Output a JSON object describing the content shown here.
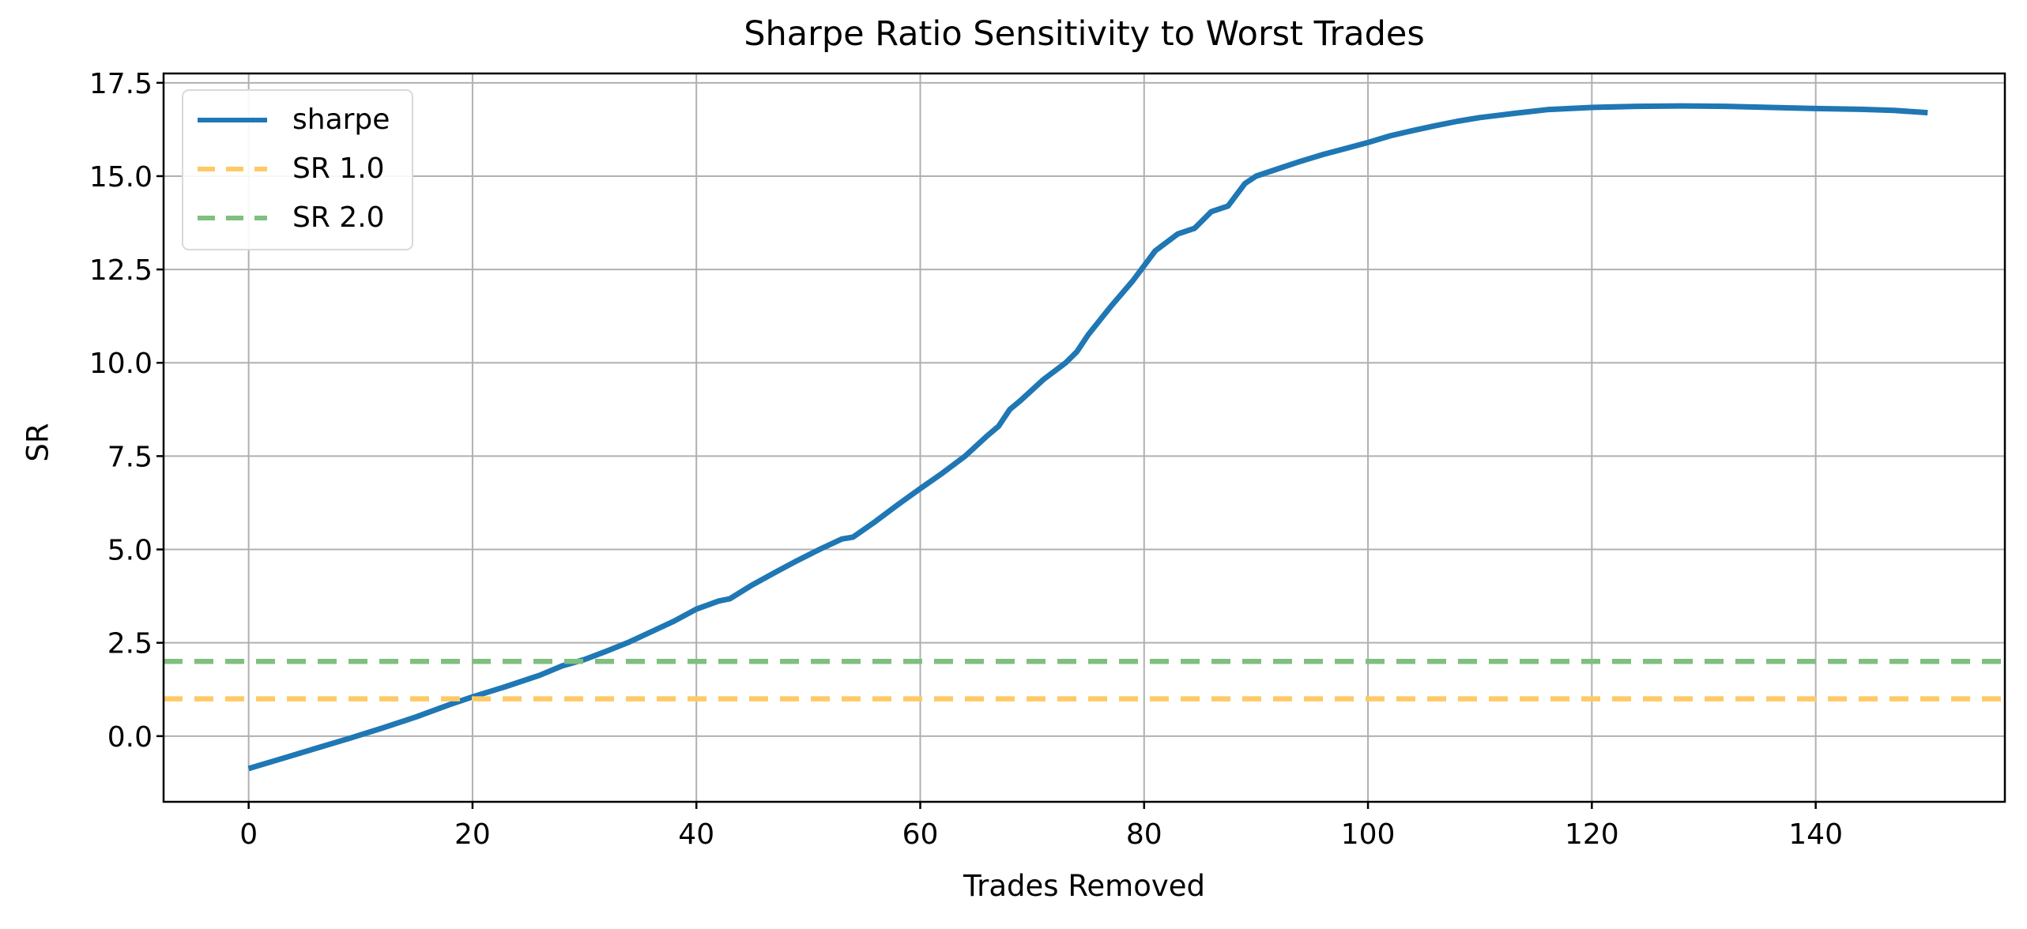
{
  "title": "Sharpe Ratio Sensitivity to Worst Trades",
  "axes": {
    "xlabel": "Trades Removed",
    "ylabel": "SR"
  },
  "legend": {
    "items": [
      {
        "label": "sharpe",
        "color": "#1f77b4",
        "style": "solid"
      },
      {
        "label": "SR 1.0",
        "color": "#ffc966",
        "style": "dashed"
      },
      {
        "label": "SR 2.0",
        "color": "#7fbf7f",
        "style": "dashed"
      }
    ]
  },
  "chart_data": {
    "type": "line",
    "title": "Sharpe Ratio Sensitivity to Worst Trades",
    "xlabel": "Trades Removed",
    "ylabel": "SR",
    "xlim": [
      -7.6,
      156.9
    ],
    "ylim": [
      -1.76,
      17.75
    ],
    "grid": true,
    "legend_position": "upper left",
    "xticks": [
      0,
      20,
      40,
      60,
      80,
      100,
      120,
      140
    ],
    "xtick_labels": [
      "0",
      "20",
      "40",
      "60",
      "80",
      "100",
      "120",
      "140"
    ],
    "yticks": [
      0.0,
      2.5,
      5.0,
      7.5,
      10.0,
      12.5,
      15.0,
      17.5
    ],
    "ytick_labels": [
      "0.0",
      "2.5",
      "5.0",
      "7.5",
      "10.0",
      "12.5",
      "15.0",
      "17.5"
    ],
    "series": [
      {
        "name": "sharpe",
        "color": "#1f77b4",
        "style": "solid",
        "points": [
          [
            0,
            -0.87
          ],
          [
            3,
            -0.6
          ],
          [
            6,
            -0.33
          ],
          [
            9,
            -0.06
          ],
          [
            12,
            0.22
          ],
          [
            15,
            0.52
          ],
          [
            18,
            0.85
          ],
          [
            20,
            1.05
          ],
          [
            23,
            1.33
          ],
          [
            26,
            1.63
          ],
          [
            28,
            1.88
          ],
          [
            30,
            2.05
          ],
          [
            32,
            2.28
          ],
          [
            34,
            2.52
          ],
          [
            36,
            2.8
          ],
          [
            38,
            3.08
          ],
          [
            40,
            3.4
          ],
          [
            42,
            3.62
          ],
          [
            43,
            3.68
          ],
          [
            45,
            4.05
          ],
          [
            47,
            4.38
          ],
          [
            49,
            4.7
          ],
          [
            51,
            5.0
          ],
          [
            53,
            5.28
          ],
          [
            54,
            5.33
          ],
          [
            56,
            5.75
          ],
          [
            58,
            6.2
          ],
          [
            60,
            6.63
          ],
          [
            62,
            7.05
          ],
          [
            64,
            7.5
          ],
          [
            66,
            8.05
          ],
          [
            67,
            8.3
          ],
          [
            68,
            8.75
          ],
          [
            69,
            9.0
          ],
          [
            71,
            9.55
          ],
          [
            73,
            10.0
          ],
          [
            74,
            10.3
          ],
          [
            75,
            10.75
          ],
          [
            77,
            11.5
          ],
          [
            79,
            12.2
          ],
          [
            80,
            12.6
          ],
          [
            81,
            13.0
          ],
          [
            83,
            13.45
          ],
          [
            84.5,
            13.6
          ],
          [
            86,
            14.05
          ],
          [
            87.5,
            14.2
          ],
          [
            89,
            14.8
          ],
          [
            90,
            15.0
          ],
          [
            92,
            15.2
          ],
          [
            94,
            15.4
          ],
          [
            96,
            15.58
          ],
          [
            98,
            15.74
          ],
          [
            100,
            15.9
          ],
          [
            102,
            16.08
          ],
          [
            104,
            16.22
          ],
          [
            106,
            16.35
          ],
          [
            108,
            16.47
          ],
          [
            110,
            16.57
          ],
          [
            113,
            16.68
          ],
          [
            116,
            16.78
          ],
          [
            120,
            16.84
          ],
          [
            124,
            16.87
          ],
          [
            128,
            16.88
          ],
          [
            132,
            16.87
          ],
          [
            136,
            16.84
          ],
          [
            140,
            16.81
          ],
          [
            144,
            16.79
          ],
          [
            147,
            16.76
          ],
          [
            150,
            16.7
          ]
        ]
      },
      {
        "name": "SR 1.0",
        "color": "#ffc966",
        "style": "dashed",
        "y": 1.0
      },
      {
        "name": "SR 2.0",
        "color": "#7fbf7f",
        "style": "dashed",
        "y": 2.0
      }
    ]
  }
}
